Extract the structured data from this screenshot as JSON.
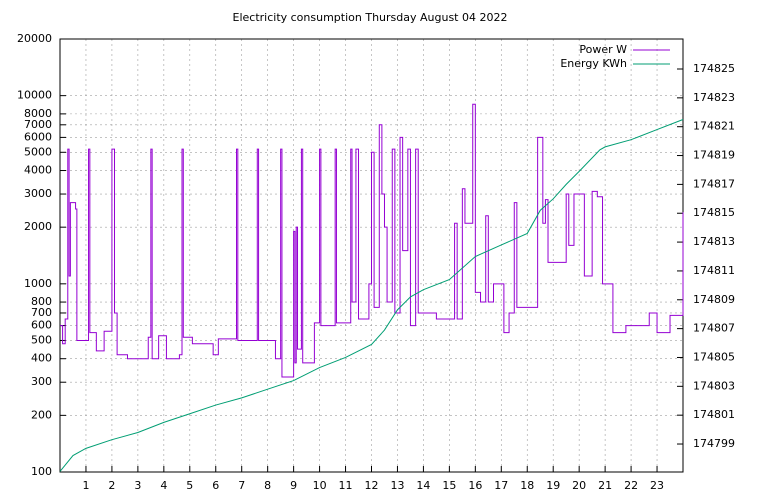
{
  "chart_data": {
    "type": "line",
    "title": "Electricity consumption Thursday August 04 2022",
    "xlim": [
      0,
      24
    ],
    "xticks": [
      1,
      2,
      3,
      4,
      5,
      6,
      7,
      8,
      9,
      10,
      11,
      12,
      13,
      14,
      15,
      16,
      17,
      18,
      19,
      20,
      21,
      22,
      23
    ],
    "ylim": [
      100,
      20000
    ],
    "log_y": true,
    "yticks": [
      100,
      200,
      300,
      400,
      500,
      600,
      700,
      800,
      1000,
      2000,
      3000,
      4000,
      5000,
      6000,
      7000,
      8000,
      10000,
      20000
    ],
    "y2lim": [
      174797.06,
      174827.08
    ],
    "y2ticks": [
      174799,
      174801,
      174803,
      174805,
      174807,
      174809,
      174811,
      174813,
      174815,
      174817,
      174819,
      174821,
      174823,
      174825
    ],
    "grid": true,
    "legend": "top-right",
    "series": [
      {
        "name": "Power W",
        "color": "#9400d3",
        "step": true,
        "x": [
          0,
          0.1,
          0.2,
          0.3,
          0.35,
          0.4,
          0.6,
          0.65,
          1.1,
          1.15,
          1.4,
          1.7,
          1.9,
          2.0,
          2.1,
          2.2,
          2.6,
          3.3,
          3.4,
          3.5,
          3.55,
          3.8,
          4.1,
          4.6,
          4.7,
          4.75,
          5.1,
          5.9,
          6.1,
          6.8,
          6.85,
          7.6,
          7.65,
          8.3,
          8.5,
          8.55,
          9,
          9.05,
          9.1,
          9.15,
          9.3,
          9.35,
          9.8,
          10.0,
          10.05,
          10.6,
          10.65,
          11.2,
          11.25,
          11.4,
          11.5,
          11.9,
          12,
          12.1,
          12.3,
          12.4,
          12.5,
          12.6,
          12.8,
          12.9,
          13.1,
          13.2,
          13.4,
          13.5,
          13.7,
          13.8,
          14.5,
          15.2,
          15.3,
          15.5,
          15.6,
          15.9,
          16,
          16.2,
          16.4,
          16.5,
          16.7,
          17.1,
          17.3,
          17.5,
          17.6,
          18.4,
          18.6,
          18.7,
          18.8,
          19.2,
          19.5,
          19.6,
          19.8,
          20.2,
          20.5,
          20.7,
          20.9,
          21.3,
          21.8,
          22.7,
          23,
          23.5,
          24
        ],
        "values": [
          600,
          480,
          650,
          5200,
          1100,
          2700,
          2500,
          500,
          5200,
          550,
          440,
          560,
          560,
          5200,
          700,
          420,
          400,
          400,
          520,
          5200,
          400,
          530,
          400,
          420,
          5200,
          520,
          480,
          420,
          510,
          5200,
          500,
          5200,
          500,
          400,
          5200,
          320,
          1900,
          380,
          2000,
          450,
          5200,
          380,
          620,
          5200,
          600,
          5200,
          620,
          5200,
          800,
          5200,
          650,
          1000,
          5000,
          750,
          7000,
          3000,
          2000,
          800,
          5200,
          700,
          6000,
          1500,
          5200,
          600,
          5200,
          700,
          650,
          2100,
          650,
          3200,
          2100,
          9000,
          900,
          800,
          2300,
          800,
          1000,
          550,
          700,
          2700,
          750,
          6000,
          2100,
          2800,
          1300,
          1300,
          3000,
          1600,
          3000,
          1100,
          3100,
          2900,
          1000,
          550,
          600,
          700,
          550,
          680,
          2400
        ]
      },
      {
        "name": "Energy KWh",
        "color": "#009e73",
        "axis": "y2",
        "x": [
          0,
          0.5,
          1,
          2,
          3,
          4,
          5,
          6,
          7,
          8,
          9,
          10,
          11,
          12,
          12.5,
          13,
          13.5,
          14,
          15,
          16,
          17,
          18,
          18.5,
          19,
          19.5,
          20,
          20.8,
          21,
          22,
          23,
          24
        ],
        "values": [
          174797.1,
          174798.2,
          174798.7,
          174799.3,
          174799.8,
          174800.5,
          174801.1,
          174801.7,
          174802.2,
          174802.8,
          174803.4,
          174804.3,
          174805.0,
          174805.9,
          174806.9,
          174808.3,
          174809.2,
          174809.7,
          174810.4,
          174812.0,
          174812.8,
          174813.6,
          174815.2,
          174816.0,
          174817.0,
          174817.9,
          174819.4,
          174819.6,
          174820.1,
          174820.8,
          174821.5
        ]
      }
    ]
  }
}
